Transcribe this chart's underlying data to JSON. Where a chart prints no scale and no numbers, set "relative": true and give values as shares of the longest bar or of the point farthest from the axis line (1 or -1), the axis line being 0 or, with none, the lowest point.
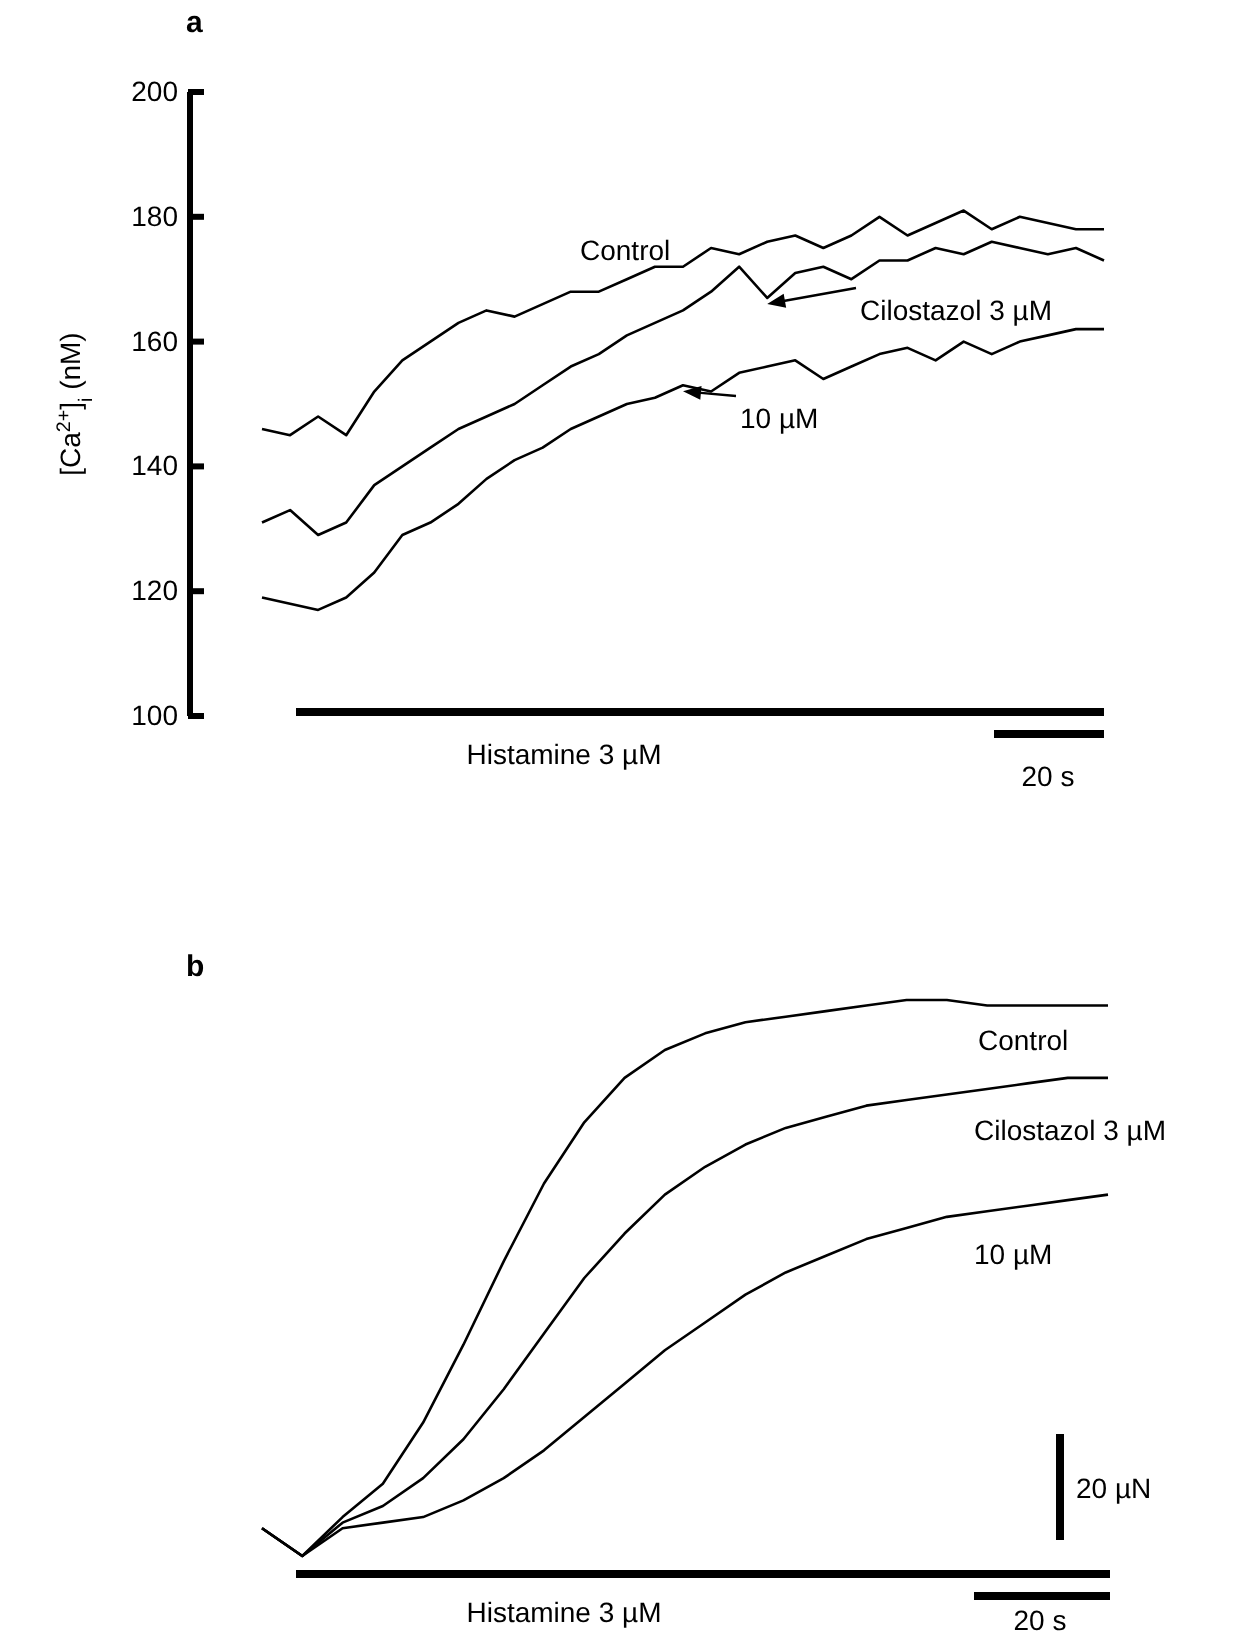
{
  "chart_data": [
    {
      "type": "line",
      "title": "a",
      "ylabel": "[Ca$^{2+}$]$_{i}$ (nM)",
      "categories": [
        null,
        null,
        null,
        null,
        null,
        null,
        null,
        null,
        null,
        null,
        null,
        null,
        null,
        null,
        null,
        null,
        null,
        null,
        null,
        null,
        null,
        null,
        null,
        null,
        null,
        null,
        null,
        null,
        null,
        null,
        null
      ],
      "ylim": [
        100,
        200
      ],
      "yticks": [
        100,
        120,
        140,
        160,
        180,
        200
      ],
      "tick_labels": "y",
      "line_style": "solid",
      "series": [
        {
          "name": "Control",
          "color": "#000000",
          "values": [
            146,
            145,
            148,
            145,
            152,
            157,
            160,
            163,
            165,
            164,
            166,
            168,
            168,
            170,
            172,
            172,
            175,
            174,
            176,
            177,
            175,
            177,
            180,
            177,
            179,
            181,
            178,
            180,
            179,
            178,
            178
          ]
        },
        {
          "name": "Cilostazol 3 µM",
          "color": "#000000",
          "values": [
            131,
            133,
            129,
            131,
            137,
            140,
            143,
            146,
            148,
            150,
            153,
            156,
            158,
            161,
            163,
            165,
            168,
            172,
            167,
            171,
            172,
            170,
            173,
            173,
            175,
            174,
            176,
            175,
            174,
            175,
            173
          ]
        },
        {
          "name": "10 µM",
          "color": "#000000",
          "values": [
            119,
            118,
            117,
            119,
            123,
            129,
            131,
            134,
            138,
            141,
            143,
            146,
            148,
            150,
            151,
            153,
            152,
            155,
            156,
            157,
            154,
            156,
            158,
            159,
            157,
            160,
            158,
            160,
            161,
            162,
            162
          ]
        }
      ],
      "annotations": [
        "Histamine 3 µM",
        "20 s"
      ]
    },
    {
      "type": "line",
      "title": "b",
      "relative": true,
      "categories": [
        null,
        null,
        null,
        null,
        null,
        null,
        null,
        null,
        null,
        null,
        null,
        null,
        null,
        null,
        null,
        null,
        null,
        null,
        null,
        null,
        null,
        null
      ],
      "line_style": "solid",
      "series": [
        {
          "name": "Control",
          "color": "#000000",
          "values": [
            0.05,
            0,
            0.07,
            0.13,
            0.24,
            0.38,
            0.53,
            0.67,
            0.78,
            0.86,
            0.91,
            0.94,
            0.96,
            0.97,
            0.98,
            0.99,
            1,
            1,
            0.99,
            0.99,
            0.99,
            0.99
          ]
        },
        {
          "name": "Cilostazol 3 µM",
          "color": "#000000",
          "values": [
            0.05,
            0,
            0.06,
            0.09,
            0.14,
            0.21,
            0.3,
            0.4,
            0.5,
            0.58,
            0.65,
            0.7,
            0.74,
            0.77,
            0.79,
            0.81,
            0.82,
            0.83,
            0.84,
            0.85,
            0.86,
            0.86
          ]
        },
        {
          "name": "10 µM",
          "color": "#000000",
          "values": [
            0.05,
            0,
            0.05,
            0.06,
            0.07,
            0.1,
            0.14,
            0.19,
            0.25,
            0.31,
            0.37,
            0.42,
            0.47,
            0.51,
            0.54,
            0.57,
            0.59,
            0.61,
            0.62,
            0.63,
            0.64,
            0.65
          ]
        }
      ],
      "annotations": [
        "Histamine 3 µM",
        "20 s",
        "20 µN"
      ]
    }
  ]
}
